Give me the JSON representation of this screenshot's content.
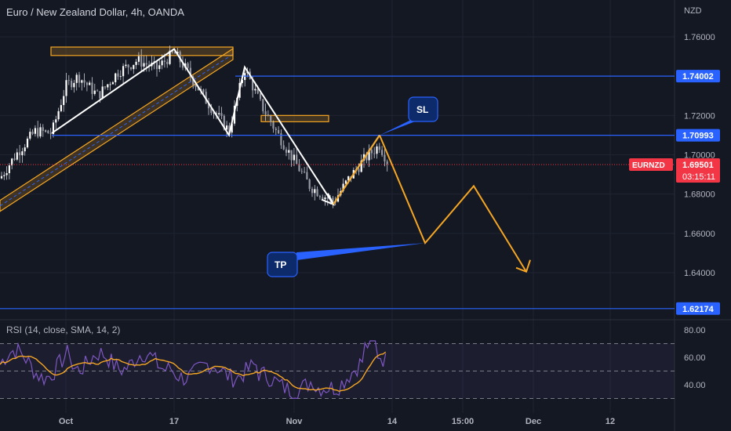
{
  "header": {
    "title": "Euro / New Zealand Dollar, 4h, OANDA",
    "currency": "NZD"
  },
  "colors": {
    "background": "#141823",
    "grid": "#1f2433",
    "axis_text": "#b2b5be",
    "level_line": "#2962ff",
    "price_badge": "#f23645",
    "projection": "#f5a623",
    "pattern_white": "#ffffff",
    "rsi_line": "#7e57c2",
    "rsi_sma": "#f5a623"
  },
  "chart_data": [
    {
      "type": "candlestick",
      "symbol_label": "EURNZD",
      "ylim": [
        1.612,
        1.768
      ],
      "y_ticks": [
        1.76,
        1.72,
        1.7,
        1.68,
        1.66,
        1.64
      ],
      "y_tick_labels": [
        "1.76000",
        "1.72000",
        "1.70000",
        "1.68000",
        "1.66000",
        "1.64000"
      ],
      "x_tick_labels": [
        "Oct",
        "17",
        "Nov",
        "14",
        "15:00",
        "Dec",
        "12"
      ],
      "levels": [
        {
          "value": 1.74002,
          "label": "1.74002"
        },
        {
          "value": 1.70993,
          "label": "1.70993"
        },
        {
          "value": 1.62174,
          "label": "1.62174"
        }
      ],
      "current_price": {
        "value": 1.69501,
        "label": "1.69501",
        "countdown": "03:15:11",
        "symbol": "EURNZD"
      },
      "annotations": [
        {
          "text": "SL"
        },
        {
          "text": "TP"
        }
      ],
      "projection_path": [
        1.7099,
        1.6551,
        1.6841,
        1.6405
      ],
      "projection_arrow_end": 1.6465,
      "pattern_path": [
        1.711,
        1.7538,
        1.71,
        1.7446,
        1.6748,
        1.71
      ],
      "highlight_zones": [
        {
          "value_low": 1.7505,
          "value_high": 1.7548
        },
        {
          "value_low": 1.7168,
          "value_high": 1.72
        }
      ],
      "channel": {
        "start": 1.6728,
        "end": 1.75
      }
    },
    {
      "type": "line",
      "title": "RSI (14, close, SMA, 14, 2)",
      "ylim": [
        24,
        86
      ],
      "y_ticks": [
        80,
        60,
        40
      ],
      "y_tick_labels": [
        "80.00",
        "60.00",
        "40.00"
      ],
      "bands": [
        70,
        50,
        30
      ]
    }
  ]
}
